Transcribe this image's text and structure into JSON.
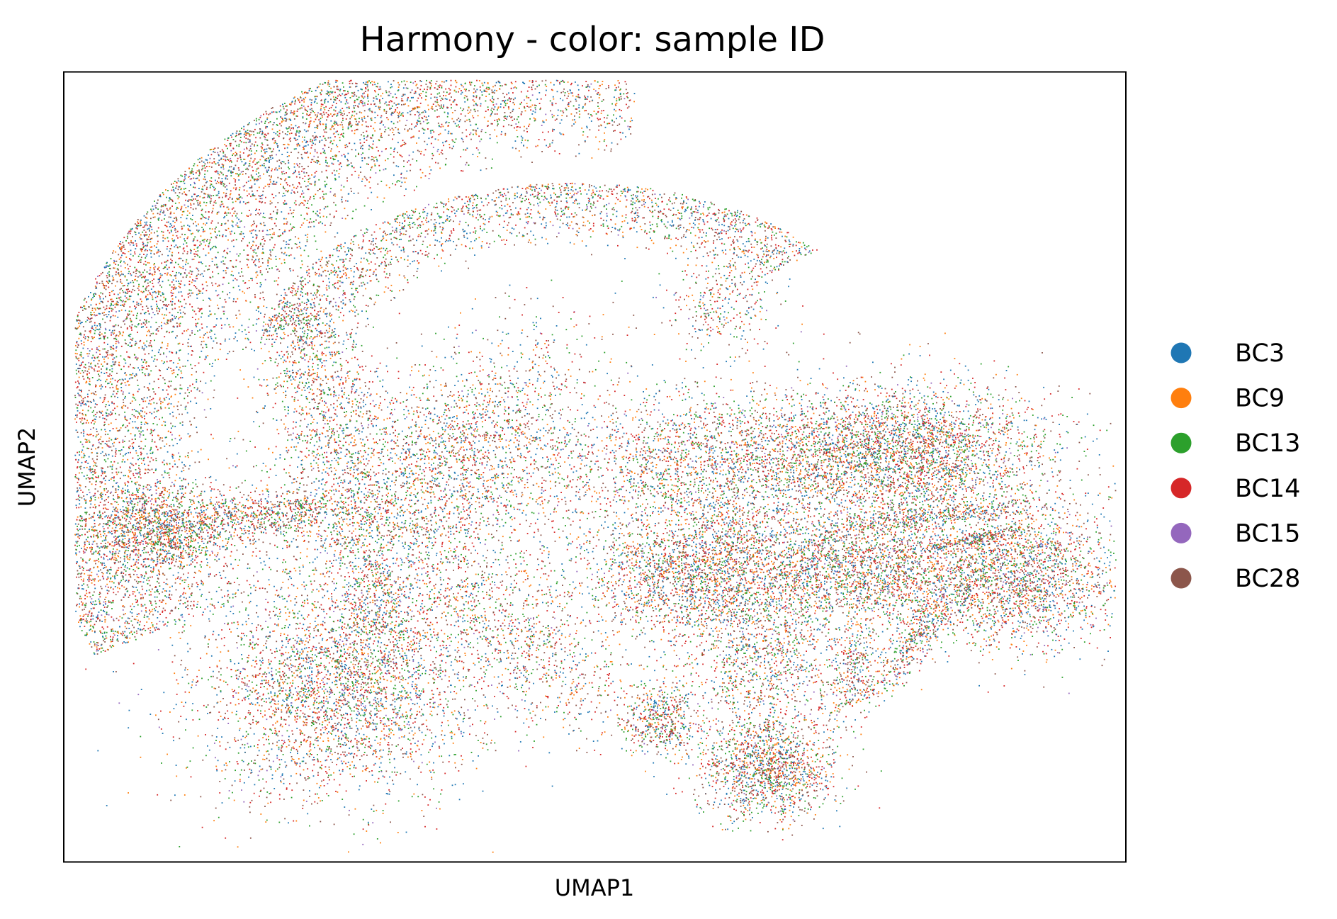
{
  "chart_data": {
    "type": "scatter",
    "title": "Harmony - color: sample ID",
    "xlabel": "UMAP1",
    "ylabel": "UMAP2",
    "xlim": [
      0,
      100
    ],
    "ylim": [
      0,
      100
    ],
    "ticks_shown": false,
    "grid": false,
    "legend_position": "right",
    "legend": [
      {
        "name": "BC3",
        "color": "#1f77b4"
      },
      {
        "name": "BC9",
        "color": "#ff7f0e"
      },
      {
        "name": "BC13",
        "color": "#2ca02c"
      },
      {
        "name": "BC14",
        "color": "#d62728"
      },
      {
        "name": "BC15",
        "color": "#9467bd"
      },
      {
        "name": "BC28",
        "color": "#8c564b"
      }
    ],
    "clusters": [
      {
        "shape": "arc",
        "cx": 50,
        "cy": 50,
        "r_inner": 36,
        "r_outer": 52,
        "a_start": 85,
        "a_end": 205,
        "x_scale": 1.0,
        "y_scale": 1.08,
        "n": 9000
      },
      {
        "shape": "arc",
        "cx": 48,
        "cy": 62,
        "r_inner": 8,
        "r_outer": 12,
        "a_start": 40,
        "a_end": 170,
        "x_scale": 2.5,
        "y_scale": 2.0,
        "n": 2200
      },
      {
        "shape": "ellipse",
        "cx": 37,
        "cy": 52,
        "rx": 9,
        "ry": 16,
        "rot": -35,
        "n": 2000
      },
      {
        "shape": "ellipse",
        "cx": 24,
        "cy": 60,
        "rx": 5,
        "ry": 17,
        "rot": 15,
        "n": 1300
      },
      {
        "shape": "ellipse",
        "cx": 9,
        "cy": 42,
        "rx": 6,
        "ry": 5,
        "rot": 0,
        "n": 1200
      },
      {
        "shape": "ellipse",
        "cx": 19,
        "cy": 44,
        "rx": 8,
        "ry": 3,
        "rot": 5,
        "n": 700
      },
      {
        "shape": "ellipse",
        "cx": 26,
        "cy": 22,
        "rx": 12,
        "ry": 13,
        "rot": -20,
        "n": 3600
      },
      {
        "shape": "ellipse",
        "cx": 29,
        "cy": 35,
        "rx": 3,
        "ry": 10,
        "rot": 10,
        "n": 400
      },
      {
        "shape": "ellipse",
        "cx": 65,
        "cy": 51,
        "rx": 20,
        "ry": 8,
        "rot": 0,
        "n": 3200
      },
      {
        "shape": "ellipse",
        "cx": 80,
        "cy": 52,
        "rx": 12,
        "ry": 8,
        "rot": 0,
        "n": 2600
      },
      {
        "shape": "ellipse",
        "cx": 60,
        "cy": 37,
        "rx": 10,
        "ry": 9,
        "rot": 0,
        "n": 2600
      },
      {
        "shape": "ellipse",
        "cx": 75,
        "cy": 37,
        "rx": 12,
        "ry": 7,
        "rot": 0,
        "n": 2400
      },
      {
        "shape": "ellipse",
        "cx": 90,
        "cy": 36,
        "rx": 10,
        "ry": 8,
        "rot": 10,
        "n": 2200
      },
      {
        "shape": "ellipse",
        "cx": 66,
        "cy": 12,
        "rx": 6,
        "ry": 6,
        "rot": 0,
        "n": 1500
      },
      {
        "shape": "ellipse",
        "cx": 56,
        "cy": 18,
        "rx": 3,
        "ry": 4,
        "rot": 0,
        "n": 500
      },
      {
        "shape": "ellipse",
        "cx": 66,
        "cy": 25,
        "rx": 7,
        "ry": 8,
        "rot": 0,
        "n": 900
      },
      {
        "shape": "ellipse",
        "cx": 80,
        "cy": 28,
        "rx": 2,
        "ry": 8,
        "rot": -30,
        "n": 450
      },
      {
        "shape": "ellipse",
        "cx": 74,
        "cy": 24,
        "rx": 2,
        "ry": 6,
        "rot": -10,
        "n": 300
      },
      {
        "shape": "ellipse",
        "cx": 83,
        "cy": 44,
        "rx": 10,
        "ry": 1.2,
        "rot": 8,
        "n": 350
      },
      {
        "shape": "ellipse",
        "cx": 86,
        "cy": 41,
        "rx": 5,
        "ry": 0.8,
        "rot": 15,
        "n": 220
      },
      {
        "shape": "ellipse",
        "cx": 62,
        "cy": 70,
        "rx": 5,
        "ry": 5,
        "rot": -40,
        "n": 300
      },
      {
        "shape": "ellipse",
        "cx": 43,
        "cy": 28,
        "rx": 6,
        "ry": 14,
        "rot": 40,
        "n": 900
      },
      {
        "shape": "ellipse",
        "cx": 32,
        "cy": 42,
        "rx": 20,
        "ry": 14,
        "rot": 0,
        "n": 1400
      }
    ]
  }
}
